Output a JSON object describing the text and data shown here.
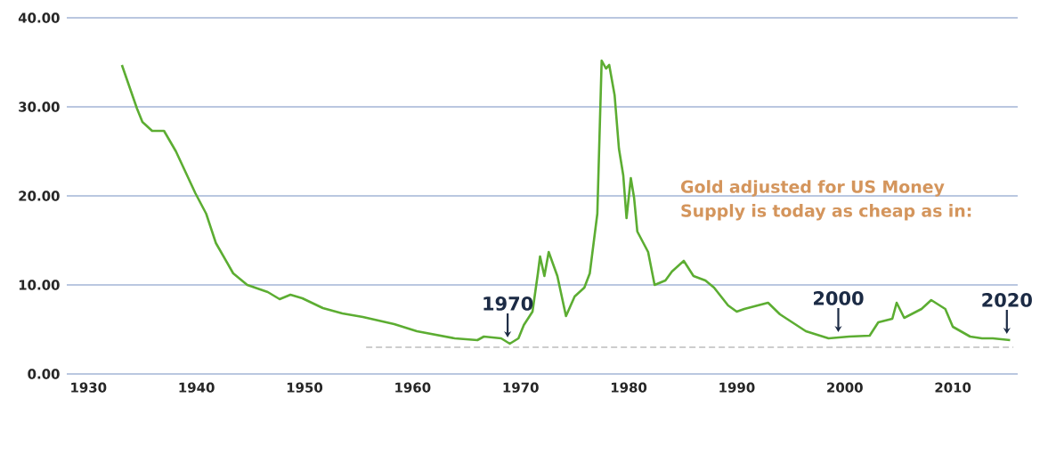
{
  "chart_data": {
    "type": "line",
    "x": [
      1933.1,
      1934.5,
      1935.0,
      1935.9,
      1937.0,
      1938.1,
      1939.9,
      1940.9,
      1941.8,
      1943.4,
      1944.7,
      1946.6,
      1947.7,
      1948.7,
      1949.8,
      1951.7,
      1953.5,
      1955.4,
      1958.3,
      1960.4,
      1963.9,
      1966.0,
      1966.6,
      1968.2,
      1969.0,
      1969.8,
      1970.3,
      1971.1,
      1971.6,
      1971.8,
      1972.2,
      1972.6,
      1973.4,
      1974.2,
      1975.0,
      1975.9,
      1976.4,
      1977.1,
      1977.5,
      1977.9,
      1978.2,
      1978.7,
      1979.1,
      1979.5,
      1979.8,
      1980.2,
      1980.5,
      1980.8,
      1981.8,
      1982.4,
      1983.4,
      1984.0,
      1985.1,
      1986.0,
      1987.1,
      1987.9,
      1989.2,
      1990.0,
      1990.7,
      1992.9,
      1994.0,
      1996.4,
      1998.5,
      2000.4,
      2002.3,
      2003.1,
      2004.4,
      2004.8,
      2005.5,
      2007.1,
      2008.0,
      2009.3,
      2010.0,
      2011.6,
      2012.7,
      2013.7,
      2015.3
    ],
    "series": [
      {
        "color": "#5cad32",
        "values": [
          34.7,
          29.8,
          28.3,
          27.3,
          27.3,
          25.0,
          20.3,
          18.0,
          14.7,
          11.3,
          10.0,
          9.2,
          8.4,
          8.9,
          8.5,
          7.4,
          6.8,
          6.4,
          5.6,
          4.8,
          4.0,
          3.8,
          4.2,
          4.0,
          3.4,
          4.0,
          5.5,
          7.0,
          11.3,
          13.2,
          11.0,
          13.7,
          11.0,
          6.5,
          8.7,
          9.7,
          11.3,
          18.0,
          35.2,
          34.3,
          34.7,
          31.3,
          25.3,
          22.3,
          17.5,
          22.0,
          19.8,
          16.0,
          13.7,
          10.0,
          10.5,
          11.5,
          12.7,
          11.0,
          10.5,
          9.7,
          7.7,
          7.0,
          7.3,
          8.0,
          6.7,
          4.8,
          4.0,
          4.2,
          4.3,
          5.8,
          6.2,
          8.0,
          6.3,
          7.3,
          8.3,
          7.3,
          5.3,
          4.2,
          4.0,
          4.0,
          3.8
        ]
      },
      {
        "type": "line",
        "x": [
          1955.7,
          2015.6
        ],
        "values": [
          3,
          3
        ],
        "color": "#bdbdbd",
        "line_style": "dashed"
      }
    ],
    "xlim": [
      1928,
      2016
    ],
    "xticks": [
      1930,
      1940,
      1950,
      1960,
      1970,
      1980,
      1990,
      2000,
      2010
    ],
    "ylim": [
      0,
      40
    ],
    "yticks": [
      {
        "value": 0,
        "label": "0.00"
      },
      {
        "value": 10,
        "label": "10.00"
      },
      {
        "value": 20,
        "label": "20.00"
      },
      {
        "value": 30,
        "label": "30.00"
      },
      {
        "value": 40,
        "label": "40.00"
      }
    ],
    "grid": "y",
    "marker": "none",
    "line_style": "solid",
    "annotations": [
      "Gold adjusted for US Money Supply is today as cheap as in:",
      {
        "text": "1970",
        "x": 1968.8,
        "y": 3.4
      },
      {
        "text": "2000",
        "x": 1999.4,
        "y": 4.0
      },
      {
        "text": "2020",
        "x": 2015.0,
        "y": 3.8
      }
    ]
  }
}
